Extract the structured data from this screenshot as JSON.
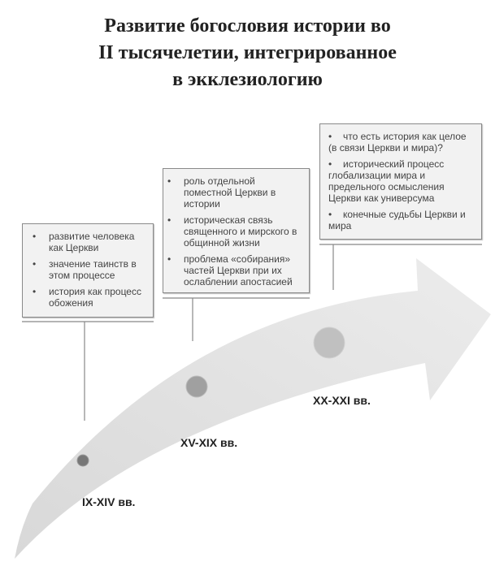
{
  "title": {
    "lines": [
      "Развитие богословия истории во",
      "II тысячелетии, интегрированное",
      "в экклезиологию"
    ]
  },
  "periods": [
    {
      "label": "IX-XIV вв.",
      "items": [
        "развитие человека как Церкви",
        "значение таинств в этом процессе",
        "история как процесс обожения"
      ]
    },
    {
      "label": "XV-XIX вв.",
      "items": [
        "роль отдельной поместной Церкви в истории",
        "историческая связь священного и мирского в общинной жизни",
        "проблема «собирания» частей Церкви при их ослаблении апостасией"
      ]
    },
    {
      "label": "XX-XXI вв.",
      "items": [
        "что есть история как целое (в связи Церкви и мира)?",
        "исторический процесс глобализации мира и предельного осмысления Церкви как универсума",
        "конечные судьбы Церкви и мира"
      ]
    }
  ],
  "colors": {
    "arrow": "#e6e6e6",
    "box_fill": "#f2f2f2",
    "circle_small": "#777777",
    "circle_medium": "#a0a0a0",
    "circle_large": "#c0c0c0"
  }
}
